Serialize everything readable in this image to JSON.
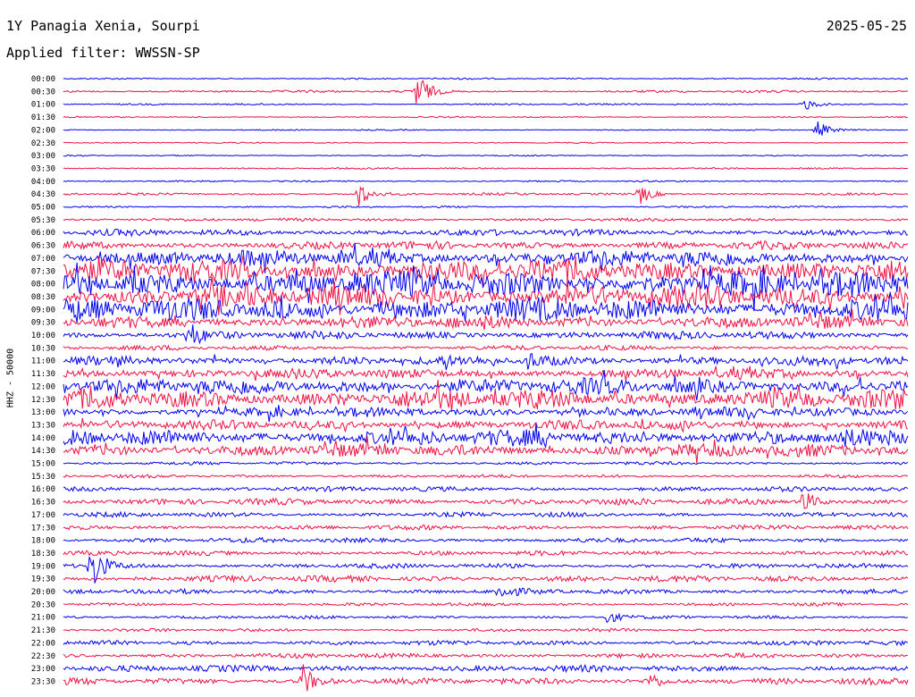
{
  "header": {
    "station": "1Y Panagia Xenia, Sourpi",
    "date": "2025-05-25",
    "filter": "Applied filter: WWSSN-SP"
  },
  "colors": {
    "line_even": "#0000ee",
    "line_odd": "#ee1144"
  },
  "chart_data": {
    "type": "line",
    "subtype": "helicorder",
    "ylabel": "HHZ - 50000",
    "row_labels": [
      "00:00",
      "00:30",
      "01:00",
      "01:30",
      "02:00",
      "02:30",
      "03:00",
      "03:30",
      "04:00",
      "04:30",
      "05:00",
      "05:30",
      "06:00",
      "06:30",
      "07:00",
      "07:30",
      "08:00",
      "08:30",
      "09:00",
      "09:30",
      "10:00",
      "10:30",
      "11:00",
      "11:30",
      "12:00",
      "12:30",
      "13:00",
      "13:30",
      "14:00",
      "14:30",
      "15:00",
      "15:30",
      "16:00",
      "16:30",
      "17:00",
      "17:30",
      "18:00",
      "18:30",
      "19:00",
      "19:30",
      "20:00",
      "20:30",
      "21:00",
      "21:30",
      "22:00",
      "22:30",
      "23:00",
      "23:30"
    ],
    "row_minutes": 30,
    "x_minutes_range": [
      0,
      30
    ],
    "amplitude_level": [
      1,
      1.5,
      1,
      0.8,
      0.8,
      0.8,
      0.8,
      1,
      1,
      1.5,
      1.2,
      2,
      4,
      5,
      10,
      14,
      16,
      14,
      14,
      8,
      5,
      3,
      6,
      6,
      10,
      12,
      6,
      6,
      10,
      8,
      2,
      2,
      3,
      4,
      3,
      3,
      3,
      3,
      3,
      4,
      3,
      2,
      2,
      2,
      3,
      3,
      4,
      4
    ],
    "events": [
      {
        "row": 1,
        "minute": 12.5,
        "amp": 28
      },
      {
        "row": 2,
        "minute": 26.3,
        "amp": 8
      },
      {
        "row": 4,
        "minute": 26.8,
        "amp": 10
      },
      {
        "row": 9,
        "minute": 10.5,
        "amp": 14
      },
      {
        "row": 9,
        "minute": 20.5,
        "amp": 12
      },
      {
        "row": 20,
        "minute": 4.5,
        "amp": 14
      },
      {
        "row": 22,
        "minute": 16.5,
        "amp": 10
      },
      {
        "row": 33,
        "minute": 26.2,
        "amp": 18
      },
      {
        "row": 38,
        "minute": 1,
        "amp": 34
      },
      {
        "row": 40,
        "minute": 15.5,
        "amp": 10
      },
      {
        "row": 42,
        "minute": 19.3,
        "amp": 8
      },
      {
        "row": 47,
        "minute": 8.5,
        "amp": 18
      },
      {
        "row": 47,
        "minute": 20.8,
        "amp": 12
      }
    ]
  }
}
